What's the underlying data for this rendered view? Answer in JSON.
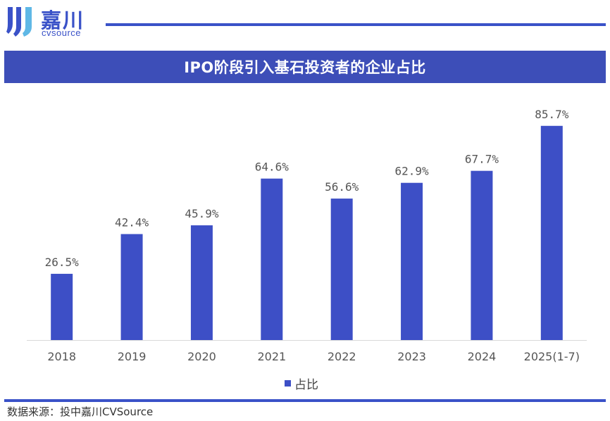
{
  "brand": {
    "name_cn": "嘉川",
    "name_en": "cvsource",
    "primary_color": "#3a52c8"
  },
  "footer": {
    "source": "数据来源：投中嘉川CVSource"
  },
  "chart_data": {
    "type": "bar",
    "title": "IPO阶段引入基石投资者的企业占比",
    "categories": [
      "2018",
      "2019",
      "2020",
      "2021",
      "2022",
      "2023",
      "2024",
      "2025(1-7)"
    ],
    "series": [
      {
        "name": "占比",
        "values": [
          26.5,
          42.4,
          45.9,
          64.6,
          56.6,
          62.9,
          67.7,
          85.7
        ],
        "labels": [
          "26.5%",
          "42.4%",
          "45.9%",
          "64.6%",
          "56.6%",
          "62.9%",
          "67.7%",
          "85.7%"
        ],
        "color": "#3d4fc6"
      }
    ],
    "xlabel": "",
    "ylabel": "",
    "ylim": [
      0,
      100
    ],
    "grid": false,
    "legend": "bottom-center"
  }
}
